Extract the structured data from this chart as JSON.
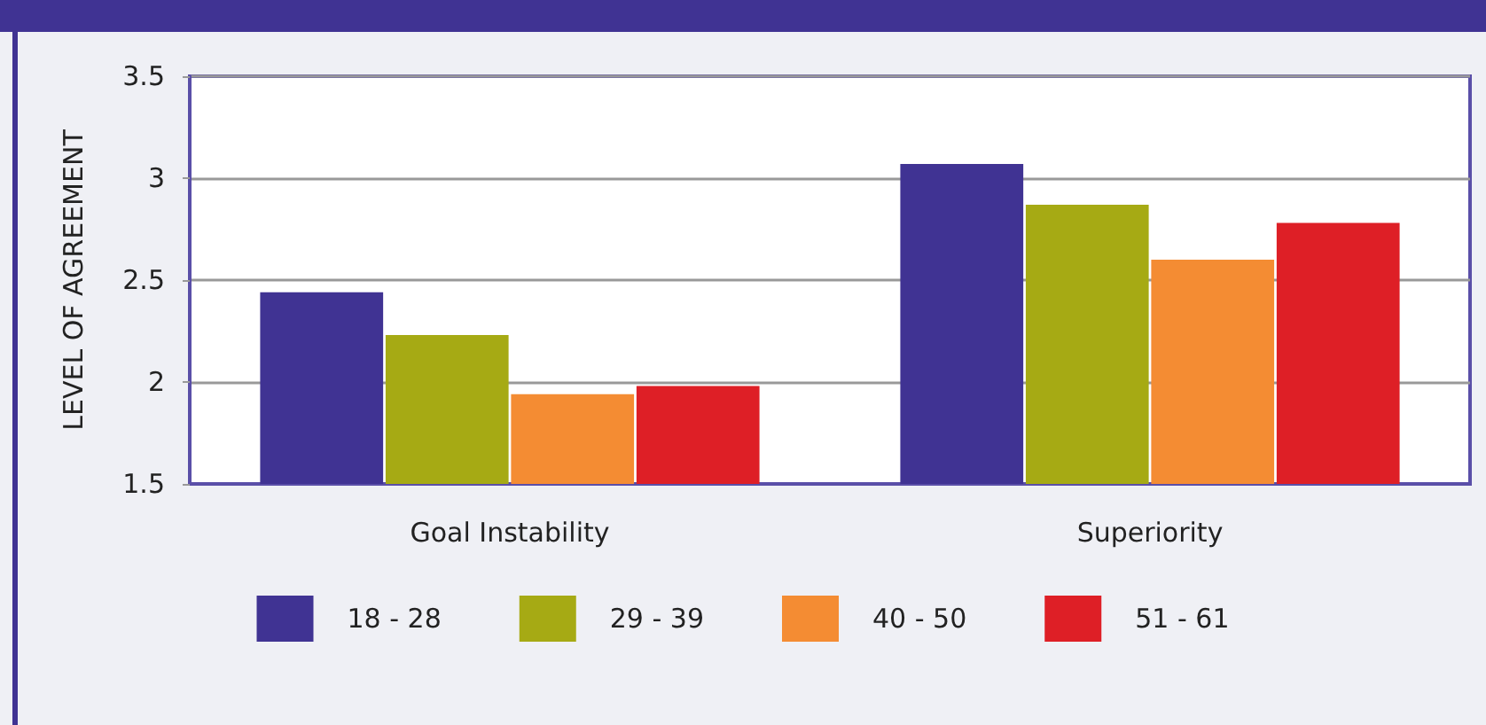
{
  "chart_data": {
    "type": "bar",
    "ylabel": "LEVEL OF AGREEMENT",
    "categories": [
      "Goal Instability",
      "Superiority"
    ],
    "series": [
      {
        "name": "18 - 28",
        "color": "#403393",
        "values": [
          2.44,
          3.07
        ]
      },
      {
        "name": "29 - 39",
        "color": "#a6aa14",
        "values": [
          2.23,
          2.87
        ]
      },
      {
        "name": "40 - 50",
        "color": "#f48c33",
        "values": [
          1.94,
          2.6
        ]
      },
      {
        "name": "51 - 61",
        "color": "#de1f26",
        "values": [
          1.98,
          2.78
        ]
      }
    ],
    "ylim": [
      1.5,
      3.5
    ],
    "yticks": [
      1.5,
      2,
      2.5,
      3,
      3.5
    ],
    "grid": "y",
    "legend": "bottom"
  }
}
